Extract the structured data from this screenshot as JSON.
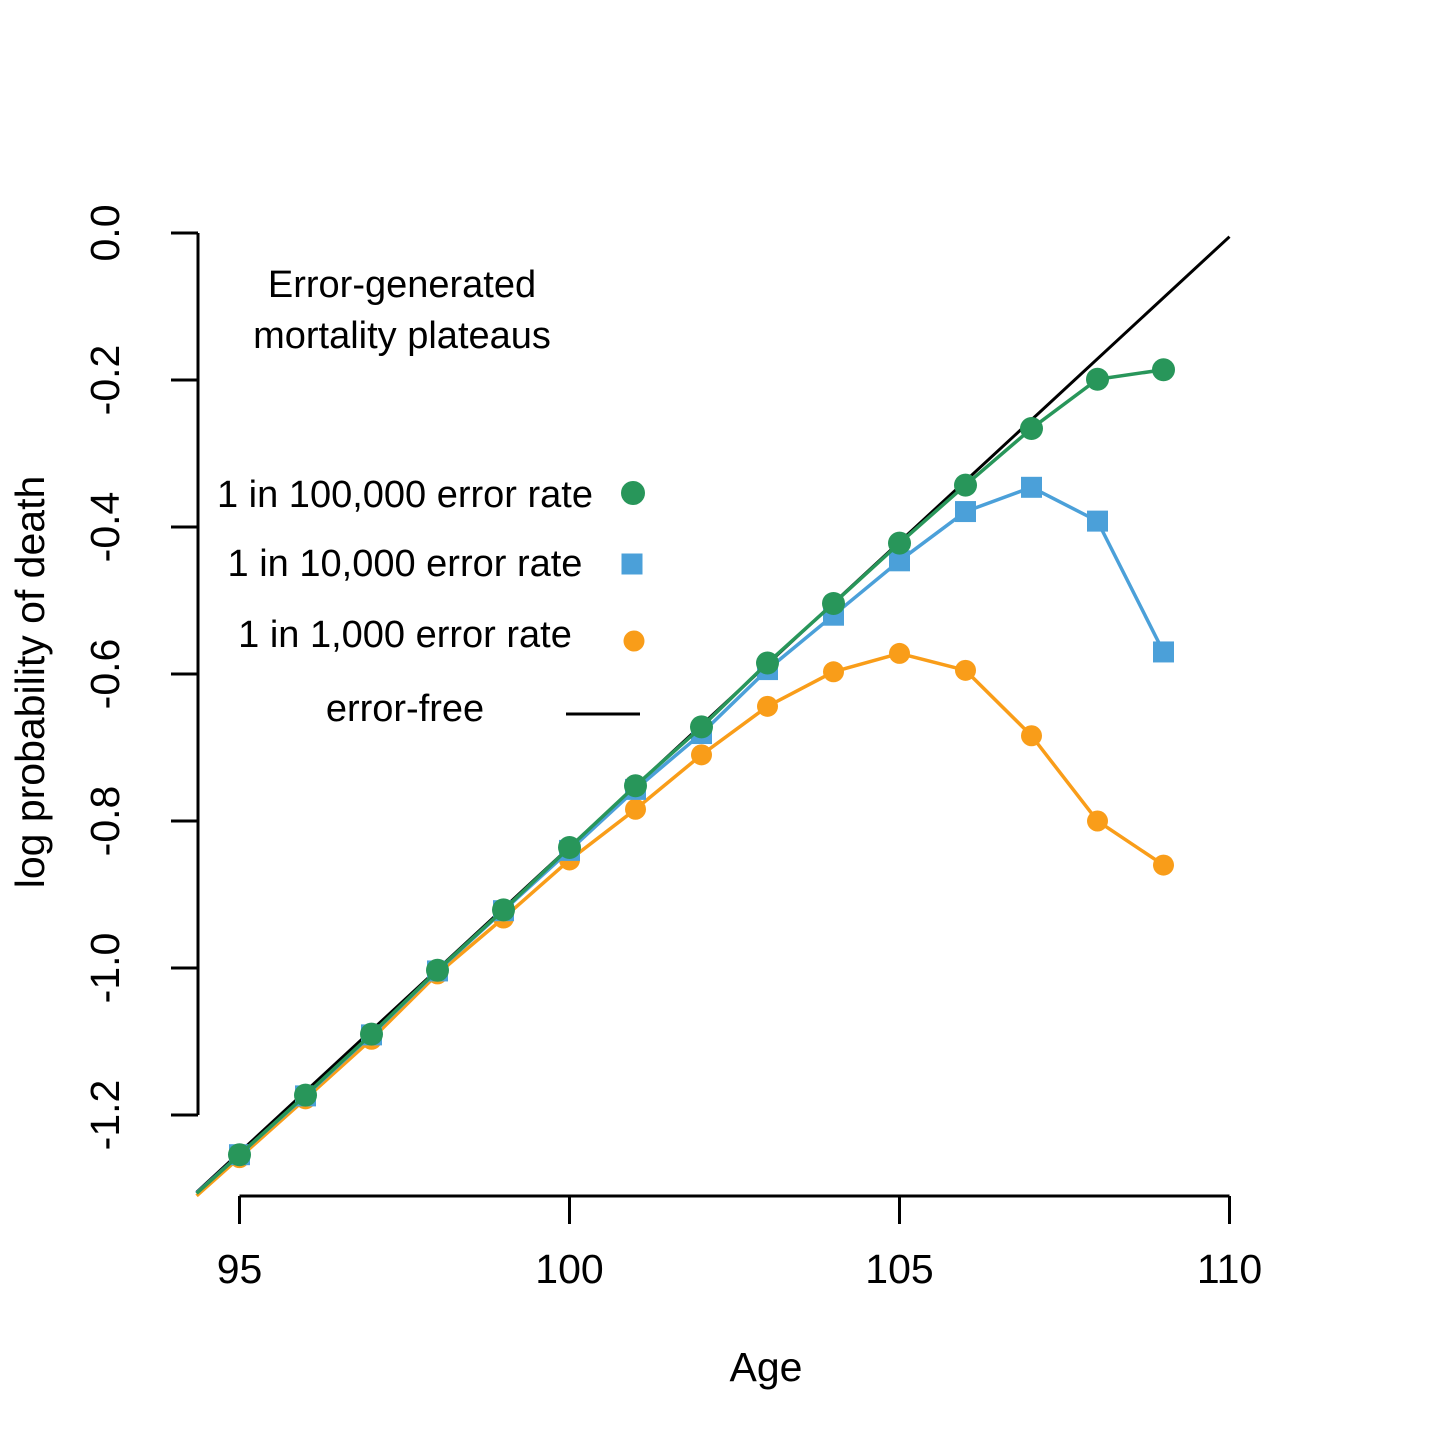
{
  "page": {
    "background": "#ffffff"
  },
  "chart_data": {
    "type": "line",
    "title": "Error-generated mortality plateaus",
    "title_lines": [
      "Error-generated",
      "mortality plateaus"
    ],
    "xlabel": "Age",
    "ylabel": "log probability of death",
    "x_tick_labels": [
      "95",
      "100",
      "105",
      "110"
    ],
    "x_tick_values": [
      95,
      100,
      105,
      110
    ],
    "y_tick_labels": [
      "0.0",
      "-0.2",
      "-0.4",
      "-0.6",
      "-0.8",
      "-1.0",
      "-1.2"
    ],
    "y_tick_values": [
      0.0,
      -0.2,
      -0.4,
      -0.6,
      -0.8,
      -1.0,
      -1.2
    ],
    "xlim": [
      94.35,
      110.05
    ],
    "ylim": [
      -1.31,
      0.0
    ],
    "grid": false,
    "legend_position": "upper-left-inside",
    "ages": [
      95,
      96,
      97,
      98,
      99,
      100,
      101,
      102,
      103,
      104,
      105,
      106,
      107,
      108,
      109
    ],
    "series": [
      {
        "name": "1 in 100,000 error rate",
        "marker": "circle",
        "color": "#28965A",
        "values": [
          -1.254,
          -1.173,
          -1.09,
          -1.003,
          -0.921,
          -0.836,
          -0.752,
          -0.672,
          -0.585,
          -0.504,
          -0.422,
          -0.343,
          -0.266,
          -0.199,
          -0.186
        ]
      },
      {
        "name": "1 in 10,000 error rate",
        "marker": "square",
        "color": "#4BA0D9",
        "values": [
          -1.254,
          -1.174,
          -1.091,
          -1.004,
          -0.922,
          -0.84,
          -0.757,
          -0.681,
          -0.594,
          -0.52,
          -0.446,
          -0.379,
          -0.346,
          -0.392,
          -0.57
        ]
      },
      {
        "name": "1 in 1,000 error rate",
        "marker": "circle",
        "color": "#F99D19",
        "values": [
          -1.258,
          -1.178,
          -1.097,
          -1.008,
          -0.932,
          -0.853,
          -0.784,
          -0.71,
          -0.644,
          -0.597,
          -0.572,
          -0.595,
          -0.684,
          -0.8,
          -0.86
        ]
      }
    ],
    "reference_line": {
      "name": "error-free",
      "color": "#000000",
      "x": [
        94.35,
        110.0
      ],
      "y": [
        -1.305,
        -0.005
      ]
    }
  }
}
